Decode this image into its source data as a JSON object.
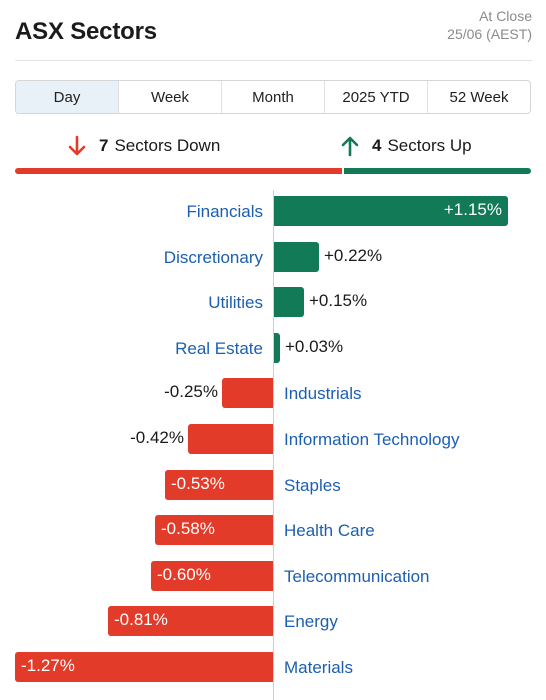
{
  "header": {
    "title": "ASX Sectors",
    "as_of_line1": "At Close",
    "as_of_line2": "25/06 (AEST)"
  },
  "tabs": [
    "Day",
    "Week",
    "Month",
    "2025 YTD",
    "52 Week"
  ],
  "active_tab": "Day",
  "summary": {
    "down_count": "7",
    "down_label": "Sectors Down",
    "up_count": "4",
    "up_label": "Sectors Up"
  },
  "colors": {
    "up": "#137a58",
    "down": "#e23b2a",
    "link": "#1c5fb0"
  },
  "chart_data": {
    "type": "bar",
    "orientation": "horizontal",
    "unit": "%",
    "xlim": [
      -1.27,
      1.15
    ],
    "categories": [
      "Financials",
      "Discretionary",
      "Utilities",
      "Real Estate",
      "Industrials",
      "Information Technology",
      "Staples",
      "Health Care",
      "Telecommunication",
      "Energy",
      "Materials"
    ],
    "values": [
      1.15,
      0.22,
      0.15,
      0.03,
      -0.25,
      -0.42,
      -0.53,
      -0.58,
      -0.6,
      -0.81,
      -1.27
    ],
    "labels": [
      "+1.15%",
      "+0.22%",
      "+0.15%",
      "+0.03%",
      "-0.25%",
      "-0.42%",
      "-0.53%",
      "-0.58%",
      "-0.60%",
      "-0.81%",
      "-1.27%"
    ]
  }
}
